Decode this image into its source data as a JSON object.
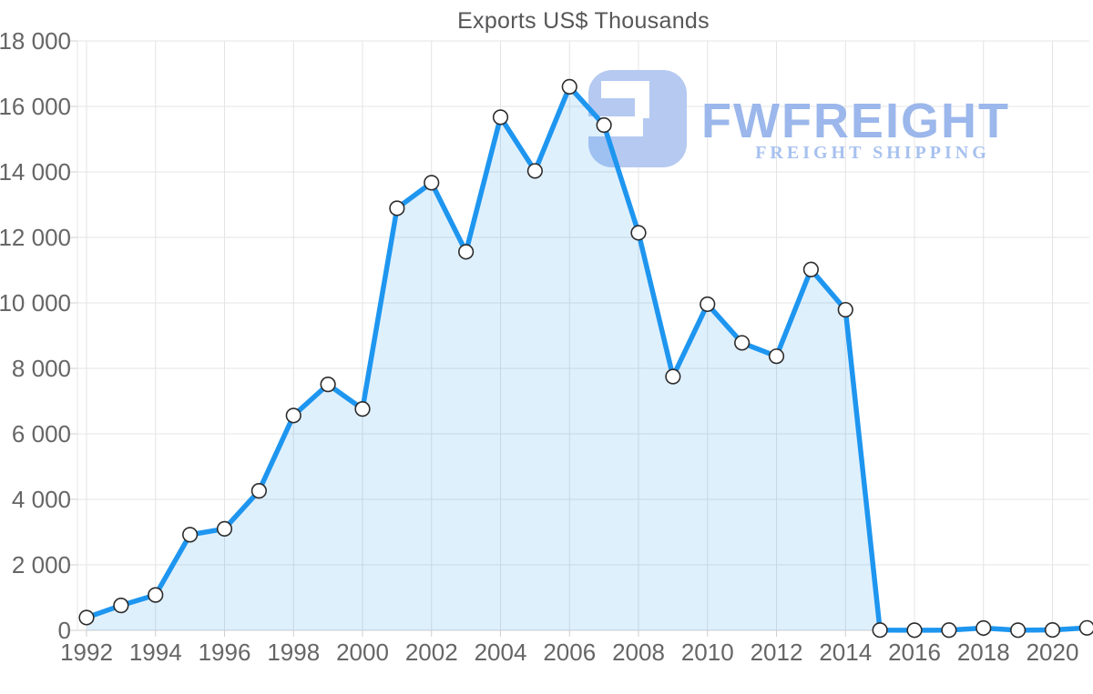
{
  "title": "Exports US$ Thousands",
  "watermark": {
    "brand": "FWFREIGHT",
    "tagline": "FREIGHT SHIPPING",
    "icon": "freight-f-rounded-square",
    "icon_color": "#b5c9f1",
    "brand_color": "#9bb7eb",
    "tagline_color": "#a7c1ef"
  },
  "colors": {
    "line": "#1e96f0",
    "area_fill": "#d9eafa",
    "marker_fill": "#ffffff",
    "marker_stroke": "#2c2c2c",
    "grid": "#e4e4e4",
    "axis": "#cfcfcf",
    "title_text": "#575759",
    "axis_text": "#666666"
  },
  "chart_data": {
    "type": "area",
    "title": "Exports US$ Thousands",
    "xlabel": "",
    "ylabel": "",
    "x": [
      1992,
      1993,
      1994,
      1995,
      1996,
      1997,
      1998,
      1999,
      2000,
      2001,
      2002,
      2003,
      2004,
      2005,
      2006,
      2007,
      2008,
      2009,
      2010,
      2011,
      2012,
      2013,
      2014,
      2015,
      2016,
      2017,
      2018,
      2019,
      2020,
      2021
    ],
    "values": [
      390,
      760,
      1080,
      2920,
      3100,
      4260,
      6560,
      7510,
      6760,
      12890,
      13670,
      11560,
      15670,
      14030,
      16600,
      15430,
      12140,
      7750,
      9960,
      8780,
      8370,
      11020,
      9790,
      8,
      4,
      6,
      70,
      5,
      12,
      75
    ],
    "xlim": [
      1992,
      2021
    ],
    "ylim": [
      0,
      18000
    ],
    "xticks": [
      1992,
      1994,
      1996,
      1998,
      2000,
      2002,
      2004,
      2006,
      2008,
      2010,
      2012,
      2014,
      2016,
      2018,
      2020
    ],
    "yticks": [
      0,
      2000,
      4000,
      6000,
      8000,
      10000,
      12000,
      14000,
      16000,
      18000
    ],
    "ytick_labels": [
      "0",
      "2 000",
      "4 000",
      "6 000",
      "8 000",
      "10 000",
      "12 000",
      "14 000",
      "16 000",
      "18 000"
    ],
    "grid": true,
    "legend": false,
    "markers": "circle"
  }
}
